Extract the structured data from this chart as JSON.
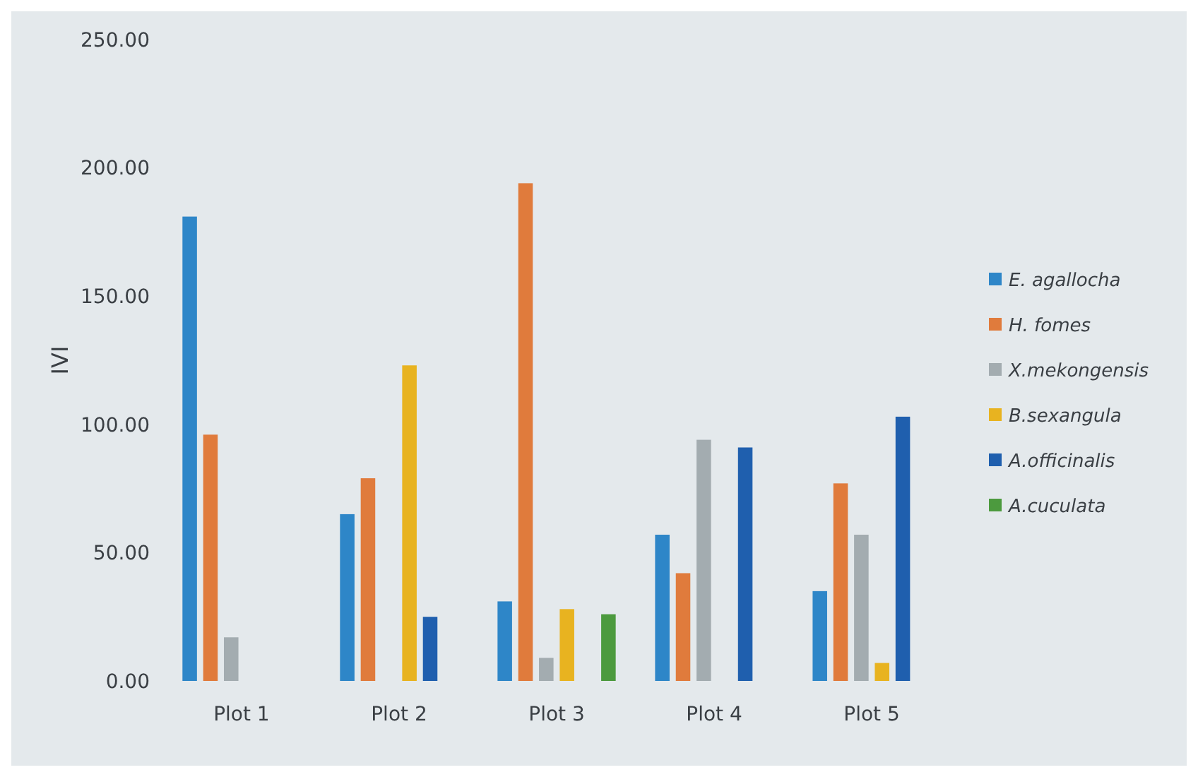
{
  "chart_data": {
    "type": "bar",
    "ylabel": "IVI",
    "categories": [
      "Plot 1",
      "Plot 2",
      "Plot 3",
      "Plot 4",
      "Plot 5"
    ],
    "series": [
      {
        "name": "E. agallocha",
        "color": "#2e86c8",
        "values": [
          181,
          65,
          31,
          57,
          35
        ]
      },
      {
        "name": "H. fomes",
        "color": "#e07b3c",
        "values": [
          96,
          79,
          194,
          42,
          77
        ]
      },
      {
        "name": "X.mekongensis",
        "color": "#a3acb0",
        "values": [
          17,
          null,
          9,
          94,
          57
        ]
      },
      {
        "name": "B.sexangula",
        "color": "#e8b320",
        "values": [
          null,
          123,
          28,
          null,
          7
        ]
      },
      {
        "name": "A.officinalis",
        "color": "#1f5fae",
        "values": [
          null,
          25,
          null,
          91,
          103
        ]
      },
      {
        "name": "A.cuculata",
        "color": "#4c9a3e",
        "values": [
          null,
          null,
          26,
          null,
          null
        ]
      }
    ],
    "ylim": [
      0,
      250
    ],
    "yticks": [
      {
        "value": 0,
        "label": "0.00"
      },
      {
        "value": 50,
        "label": "50.00"
      },
      {
        "value": 100,
        "label": "100.00"
      },
      {
        "value": 150,
        "label": "150.00"
      },
      {
        "value": 200,
        "label": "200.00"
      },
      {
        "value": 250,
        "label": "250.00"
      }
    ],
    "legend": "right"
  }
}
